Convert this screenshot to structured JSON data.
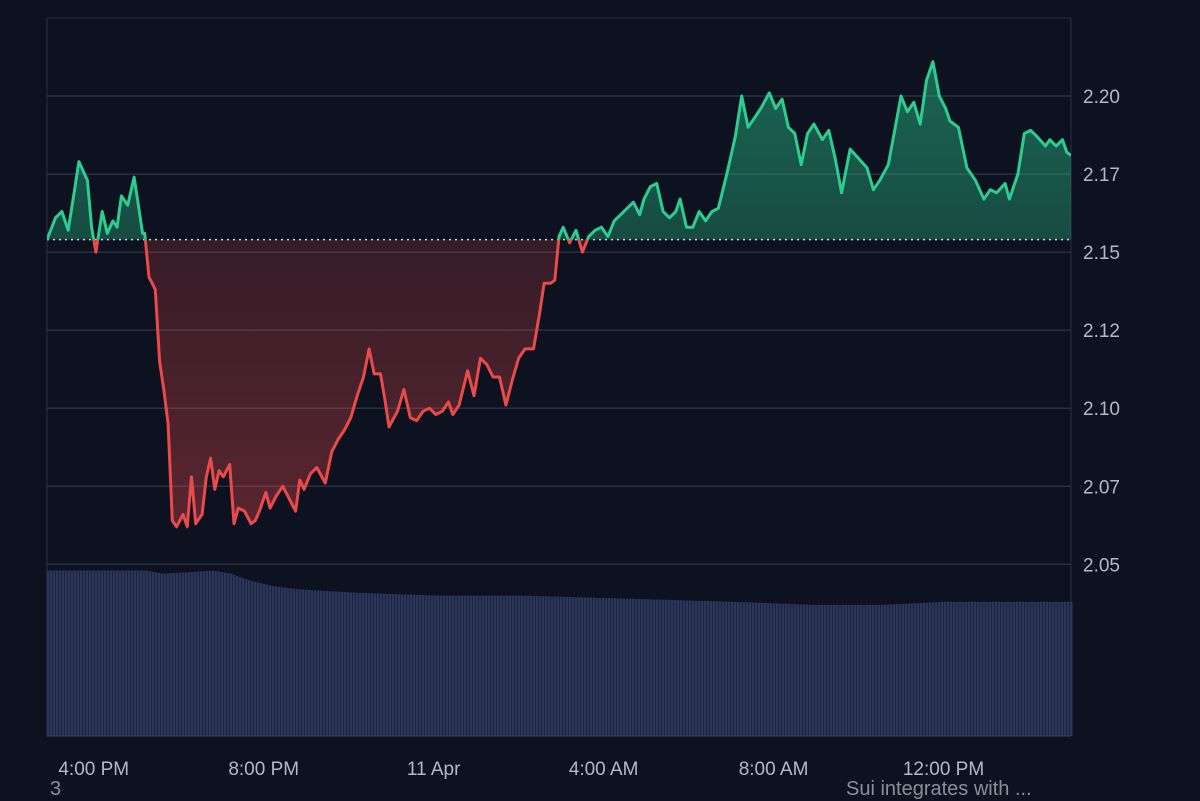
{
  "chart_data": {
    "type": "area",
    "baseline": 2.154,
    "ylim": [
      1.995,
      2.225
    ],
    "y_ticks": [
      "2.20",
      "2.17",
      "2.15",
      "2.12",
      "2.10",
      "2.07",
      "2.05"
    ],
    "y_tick_values": [
      2.2,
      2.175,
      2.15,
      2.125,
      2.1,
      2.075,
      2.05
    ],
    "x_ticks": [
      "4:00 PM",
      "8:00 PM",
      "11 Apr",
      "4:00 AM",
      "8:00 AM",
      "12:00 PM"
    ],
    "x_tick_hours": [
      4,
      8,
      12,
      16,
      20,
      24
    ],
    "x_range_hours": [
      2.9,
      27.0
    ],
    "colors": {
      "up": "#2dcc8f",
      "down": "#ea4a4a",
      "volume": "#2c355a",
      "grid": "#2a3040",
      "baseline": "#d0d4dc",
      "background": "#0d1220"
    },
    "price_points": [
      [
        2.9,
        2.154
      ],
      [
        3.1,
        2.161
      ],
      [
        3.25,
        2.163
      ],
      [
        3.4,
        2.157
      ],
      [
        3.55,
        2.17
      ],
      [
        3.65,
        2.179
      ],
      [
        3.85,
        2.173
      ],
      [
        3.95,
        2.158
      ],
      [
        4.05,
        2.15
      ],
      [
        4.2,
        2.163
      ],
      [
        4.32,
        2.156
      ],
      [
        4.45,
        2.16
      ],
      [
        4.55,
        2.158
      ],
      [
        4.65,
        2.168
      ],
      [
        4.8,
        2.165
      ],
      [
        4.95,
        2.174
      ],
      [
        5.05,
        2.165
      ],
      [
        5.15,
        2.156
      ],
      [
        5.2,
        2.156
      ],
      [
        5.3,
        2.142
      ],
      [
        5.45,
        2.138
      ],
      [
        5.55,
        2.115
      ],
      [
        5.65,
        2.106
      ],
      [
        5.75,
        2.095
      ],
      [
        5.85,
        2.064
      ],
      [
        5.95,
        2.062
      ],
      [
        6.1,
        2.066
      ],
      [
        6.2,
        2.062
      ],
      [
        6.3,
        2.078
      ],
      [
        6.4,
        2.063
      ],
      [
        6.55,
        2.066
      ],
      [
        6.65,
        2.078
      ],
      [
        6.75,
        2.084
      ],
      [
        6.85,
        2.074
      ],
      [
        6.95,
        2.08
      ],
      [
        7.05,
        2.078
      ],
      [
        7.2,
        2.082
      ],
      [
        7.3,
        2.063
      ],
      [
        7.4,
        2.068
      ],
      [
        7.55,
        2.067
      ],
      [
        7.7,
        2.063
      ],
      [
        7.8,
        2.064
      ],
      [
        7.9,
        2.067
      ],
      [
        8.05,
        2.073
      ],
      [
        8.15,
        2.068
      ],
      [
        8.3,
        2.072
      ],
      [
        8.45,
        2.075
      ],
      [
        8.6,
        2.071
      ],
      [
        8.75,
        2.067
      ],
      [
        8.85,
        2.077
      ],
      [
        8.95,
        2.074
      ],
      [
        9.1,
        2.079
      ],
      [
        9.25,
        2.081
      ],
      [
        9.45,
        2.076
      ],
      [
        9.6,
        2.086
      ],
      [
        9.75,
        2.09
      ],
      [
        9.9,
        2.093
      ],
      [
        10.05,
        2.097
      ],
      [
        10.2,
        2.104
      ],
      [
        10.35,
        2.11
      ],
      [
        10.48,
        2.119
      ],
      [
        10.6,
        2.111
      ],
      [
        10.75,
        2.111
      ],
      [
        10.85,
        2.103
      ],
      [
        10.95,
        2.094
      ],
      [
        11.15,
        2.099
      ],
      [
        11.3,
        2.106
      ],
      [
        11.45,
        2.097
      ],
      [
        11.6,
        2.096
      ],
      [
        11.75,
        2.099
      ],
      [
        11.9,
        2.1
      ],
      [
        12.05,
        2.098
      ],
      [
        12.2,
        2.099
      ],
      [
        12.35,
        2.102
      ],
      [
        12.45,
        2.098
      ],
      [
        12.6,
        2.101
      ],
      [
        12.8,
        2.112
      ],
      [
        12.95,
        2.104
      ],
      [
        13.1,
        2.116
      ],
      [
        13.25,
        2.114
      ],
      [
        13.4,
        2.11
      ],
      [
        13.55,
        2.11
      ],
      [
        13.7,
        2.101
      ],
      [
        13.85,
        2.109
      ],
      [
        14.0,
        2.116
      ],
      [
        14.15,
        2.119
      ],
      [
        14.35,
        2.119
      ],
      [
        14.5,
        2.131
      ],
      [
        14.6,
        2.14
      ],
      [
        14.75,
        2.14
      ],
      [
        14.85,
        2.141
      ],
      [
        14.95,
        2.155
      ],
      [
        15.05,
        2.158
      ],
      [
        15.2,
        2.153
      ],
      [
        15.35,
        2.157
      ],
      [
        15.5,
        2.15
      ],
      [
        15.65,
        2.155
      ],
      [
        15.8,
        2.157
      ],
      [
        15.95,
        2.158
      ],
      [
        16.1,
        2.155
      ],
      [
        16.25,
        2.16
      ],
      [
        16.4,
        2.162
      ],
      [
        16.55,
        2.164
      ],
      [
        16.7,
        2.166
      ],
      [
        16.85,
        2.162
      ],
      [
        16.95,
        2.167
      ],
      [
        17.1,
        2.171
      ],
      [
        17.25,
        2.172
      ],
      [
        17.4,
        2.163
      ],
      [
        17.55,
        2.161
      ],
      [
        17.7,
        2.163
      ],
      [
        17.8,
        2.167
      ],
      [
        17.95,
        2.158
      ],
      [
        18.1,
        2.158
      ],
      [
        18.25,
        2.163
      ],
      [
        18.4,
        2.16
      ],
      [
        18.55,
        2.163
      ],
      [
        18.7,
        2.164
      ],
      [
        18.9,
        2.175
      ],
      [
        19.1,
        2.187
      ],
      [
        19.25,
        2.2
      ],
      [
        19.4,
        2.19
      ],
      [
        19.55,
        2.193
      ],
      [
        19.7,
        2.196
      ],
      [
        19.9,
        2.201
      ],
      [
        20.05,
        2.196
      ],
      [
        20.2,
        2.199
      ],
      [
        20.35,
        2.19
      ],
      [
        20.5,
        2.188
      ],
      [
        20.65,
        2.178
      ],
      [
        20.8,
        2.188
      ],
      [
        20.95,
        2.191
      ],
      [
        21.15,
        2.186
      ],
      [
        21.3,
        2.189
      ],
      [
        21.45,
        2.18
      ],
      [
        21.6,
        2.169
      ],
      [
        21.8,
        2.183
      ],
      [
        22.0,
        2.18
      ],
      [
        22.2,
        2.177
      ],
      [
        22.35,
        2.17
      ],
      [
        22.5,
        2.173
      ],
      [
        22.7,
        2.178
      ],
      [
        22.85,
        2.189
      ],
      [
        23.0,
        2.2
      ],
      [
        23.15,
        2.195
      ],
      [
        23.3,
        2.198
      ],
      [
        23.45,
        2.191
      ],
      [
        23.6,
        2.205
      ],
      [
        23.75,
        2.211
      ],
      [
        23.9,
        2.2
      ],
      [
        24.05,
        2.196
      ],
      [
        24.15,
        2.192
      ],
      [
        24.35,
        2.19
      ],
      [
        24.55,
        2.177
      ],
      [
        24.75,
        2.173
      ],
      [
        24.95,
        2.167
      ],
      [
        25.1,
        2.17
      ],
      [
        25.25,
        2.169
      ],
      [
        25.45,
        2.172
      ],
      [
        25.55,
        2.167
      ],
      [
        25.75,
        2.175
      ],
      [
        25.9,
        2.188
      ],
      [
        26.05,
        2.189
      ],
      [
        26.2,
        2.187
      ],
      [
        26.4,
        2.184
      ],
      [
        26.5,
        2.186
      ],
      [
        26.65,
        2.184
      ],
      [
        26.8,
        2.186
      ],
      [
        26.9,
        2.182
      ],
      [
        27.0,
        2.181
      ]
    ],
    "volume_levels": [
      [
        2.9,
        2.048
      ],
      [
        5.2,
        2.048
      ],
      [
        5.6,
        2.047
      ],
      [
        6.8,
        2.048
      ],
      [
        7.2,
        2.047
      ],
      [
        7.6,
        2.045
      ],
      [
        8.2,
        2.043
      ],
      [
        8.8,
        2.042
      ],
      [
        10.0,
        2.041
      ],
      [
        12.0,
        2.04
      ],
      [
        14.0,
        2.04
      ],
      [
        16.5,
        2.039
      ],
      [
        19.0,
        2.038
      ],
      [
        21.0,
        2.037
      ],
      [
        22.5,
        2.037
      ],
      [
        24.0,
        2.038
      ],
      [
        26.0,
        2.038
      ],
      [
        27.0,
        2.038
      ]
    ]
  },
  "footer": {
    "left_text": "3",
    "right_text": "Sui integrates with ..."
  }
}
